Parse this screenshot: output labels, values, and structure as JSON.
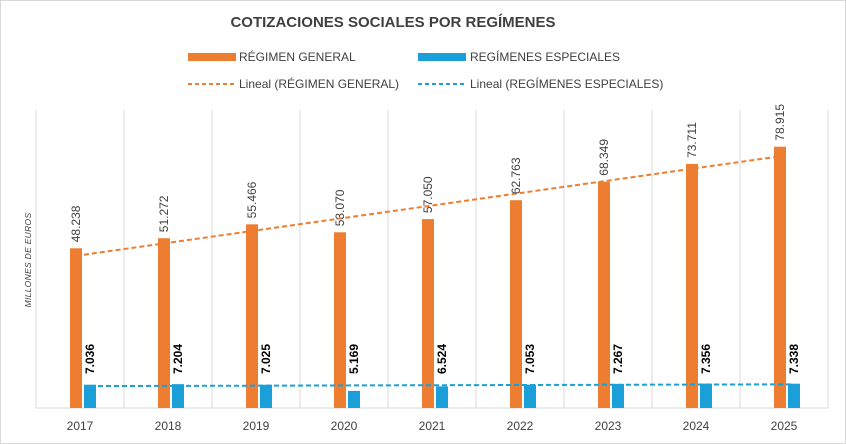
{
  "chart_data": {
    "type": "bar",
    "title": "COTIZACIONES SOCIALES POR REGÍMENES",
    "ylabel": "MILLONES DE EUROS",
    "xlabel": "",
    "categories": [
      "2017",
      "2018",
      "2019",
      "2020",
      "2021",
      "2022",
      "2023",
      "2024",
      "2025"
    ],
    "series": [
      {
        "name": "RÉGIMEN GENERAL",
        "values": [
          48238,
          51272,
          55466,
          53070,
          57050,
          62763,
          68349,
          73711,
          78915
        ],
        "labels": [
          "48.238",
          "51.272",
          "55.466",
          "53.070",
          "57.050",
          "62.763",
          "68.349",
          "73.711",
          "78.915"
        ],
        "color": "#ED7D31"
      },
      {
        "name": "REGÍMENES ESPECIALES",
        "values": [
          7036,
          7204,
          7025,
          5169,
          6524,
          7053,
          7267,
          7356,
          7338
        ],
        "labels": [
          "7.036",
          "7.204",
          "7.025",
          "5.169",
          "6.524",
          "7.053",
          "7.267",
          "7.356",
          "7.338"
        ],
        "color": "#1A9FD9"
      }
    ],
    "trendlines": [
      {
        "name": "Lineal (RÉGIMEN GENERAL)",
        "series": "RÉGIMEN GENERAL",
        "type": "linear",
        "color": "#ED7D31",
        "dashed": true
      },
      {
        "name": "Lineal (REGÍMENES ESPECIALES)",
        "series": "REGÍMENES ESPECIALES",
        "type": "linear",
        "color": "#1A9FD9",
        "dashed": true
      }
    ],
    "ylim": [
      0,
      90000
    ],
    "grid": "vertical",
    "legend": "top"
  }
}
